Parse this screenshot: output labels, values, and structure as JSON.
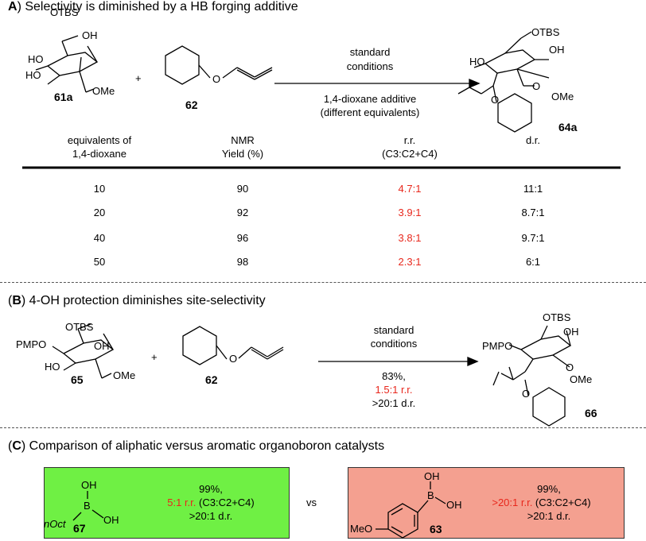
{
  "sectionA": {
    "letter": "A",
    "title_rest": ") Selectivity is diminished by a HB forging additive",
    "sm": {
      "otbs": "OTBS",
      "oh_top": "OH",
      "ho1": "HO",
      "ho2": "HO",
      "ome": "OMe",
      "label": "61a"
    },
    "plus": "+",
    "allene": {
      "o": "O",
      "label": "62"
    },
    "arrow_above_1": "standard",
    "arrow_above_2": "conditions",
    "arrow_below_1": "1,4-dioxane additive",
    "arrow_below_2": "(different equivalents)",
    "product": {
      "otbs": "OTBS",
      "oh": "OH",
      "ho": "HO",
      "o1": "O",
      "o2": "O",
      "ome": "OMe",
      "label": "64a"
    },
    "table": {
      "headers": [
        {
          "l1": "equivalents of",
          "l2": "1,4-dioxane"
        },
        {
          "l1": "NMR",
          "l2": "Yield (%)"
        },
        {
          "l1": "r.r.",
          "l2": "(C3:C2+C4)"
        },
        {
          "l1": "",
          "l2": "d.r."
        }
      ],
      "rows": [
        {
          "eq": "10",
          "yield": "90",
          "rr": "4.7:1",
          "dr": "11:1"
        },
        {
          "eq": "20",
          "yield": "92",
          "rr": "3.9:1",
          "dr": "8.7:1"
        },
        {
          "eq": "40",
          "yield": "96",
          "rr": "3.8:1",
          "dr": "9.7:1"
        },
        {
          "eq": "50",
          "yield": "98",
          "rr": "2.3:1",
          "dr": "6:1"
        }
      ]
    }
  },
  "sectionB": {
    "letter": "B",
    "title_pre": "(",
    "title_rest": ") 4-OH protection diminishes site-selectivity",
    "sm": {
      "otbs": "OTBS",
      "oh": "OH",
      "pmpo": "PMPO",
      "ho": "HO",
      "ome": "OMe",
      "label": "65"
    },
    "plus": "+",
    "allene": {
      "o": "O",
      "label": "62"
    },
    "arrow_above_1": "standard",
    "arrow_above_2": "conditions",
    "arrow_below_1": "83%,",
    "arrow_below_2": "1.5:1 r.r.",
    "arrow_below_3": ">20:1 d.r.",
    "product": {
      "otbs": "OTBS",
      "oh": "OH",
      "pmpo": "PMPO",
      "o1": "O",
      "o2": "O",
      "ome": "OMe",
      "label": "66"
    }
  },
  "sectionC": {
    "letter": "C",
    "title_pre": "(",
    "title_rest": ") Comparison of aliphatic versus aromatic organoboron catalysts",
    "vs": "vs",
    "left": {
      "oh_top": "OH",
      "b": "B",
      "oh_right": "OH",
      "noct": "nOct",
      "label": "67",
      "line1": "99%,",
      "rr_red": "5:1 r.r.",
      "rr_black": " (C3:C2+C4)",
      "line3": ">20:1 d.r.",
      "bg": "#6ff044"
    },
    "right": {
      "oh_top": "OH",
      "b": "B",
      "oh_right": "OH",
      "meo": "MeO",
      "label": "63",
      "line1": "99%,",
      "rr_red": ">20:1 r.r.",
      "rr_black": " (C3:C2+C4)",
      "line3": ">20:1 d.r.",
      "bg": "#f4a090"
    }
  },
  "colors": {
    "highlight_red": "#e8271c",
    "green_box": "#6ff044",
    "pink_box": "#f4a090"
  }
}
